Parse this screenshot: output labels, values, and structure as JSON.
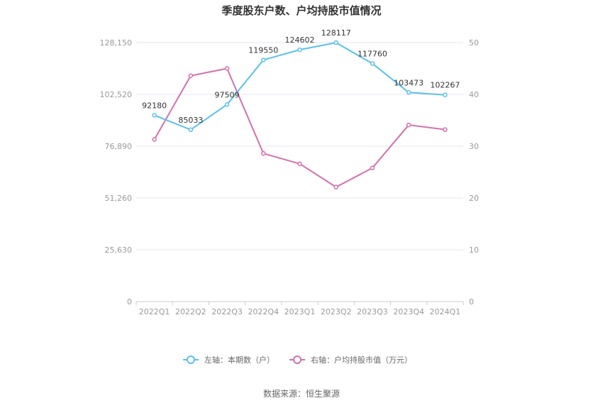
{
  "chart_data": {
    "type": "line",
    "title": "季度股东户数、户均持股市值情况",
    "categories": [
      "2022Q1",
      "2022Q2",
      "2022Q3",
      "2022Q4",
      "2023Q1",
      "2023Q2",
      "2023Q3",
      "2023Q4",
      "2024Q1"
    ],
    "left_axis": {
      "ticks": [
        "0",
        "25,630",
        "51,260",
        "76,890",
        "102,520",
        "128,150"
      ],
      "ylim": [
        0,
        128150
      ]
    },
    "right_axis": {
      "ticks": [
        "0",
        "10",
        "20",
        "30",
        "40",
        "50"
      ],
      "ylim": [
        0,
        50
      ]
    },
    "series": [
      {
        "name": "左轴：本期数（户）",
        "axis": "left",
        "color": "#5bc0eb",
        "values": [
          92180,
          85033,
          97509,
          119550,
          124602,
          128117,
          117760,
          103473,
          102267
        ],
        "labels": [
          "92180",
          "85033",
          "97509",
          "119550",
          "124602",
          "128117",
          "117760",
          "103473",
          "102267"
        ]
      },
      {
        "name": "右轴：户均持股市值（万元）",
        "axis": "right",
        "color": "#d46faf",
        "values": [
          31.3,
          43.6,
          45.0,
          28.6,
          26.6,
          22.1,
          25.8,
          34.1,
          33.2
        ]
      }
    ],
    "grid": true,
    "legend_position": "bottom-center",
    "source": "数据来源：恒生聚源"
  }
}
